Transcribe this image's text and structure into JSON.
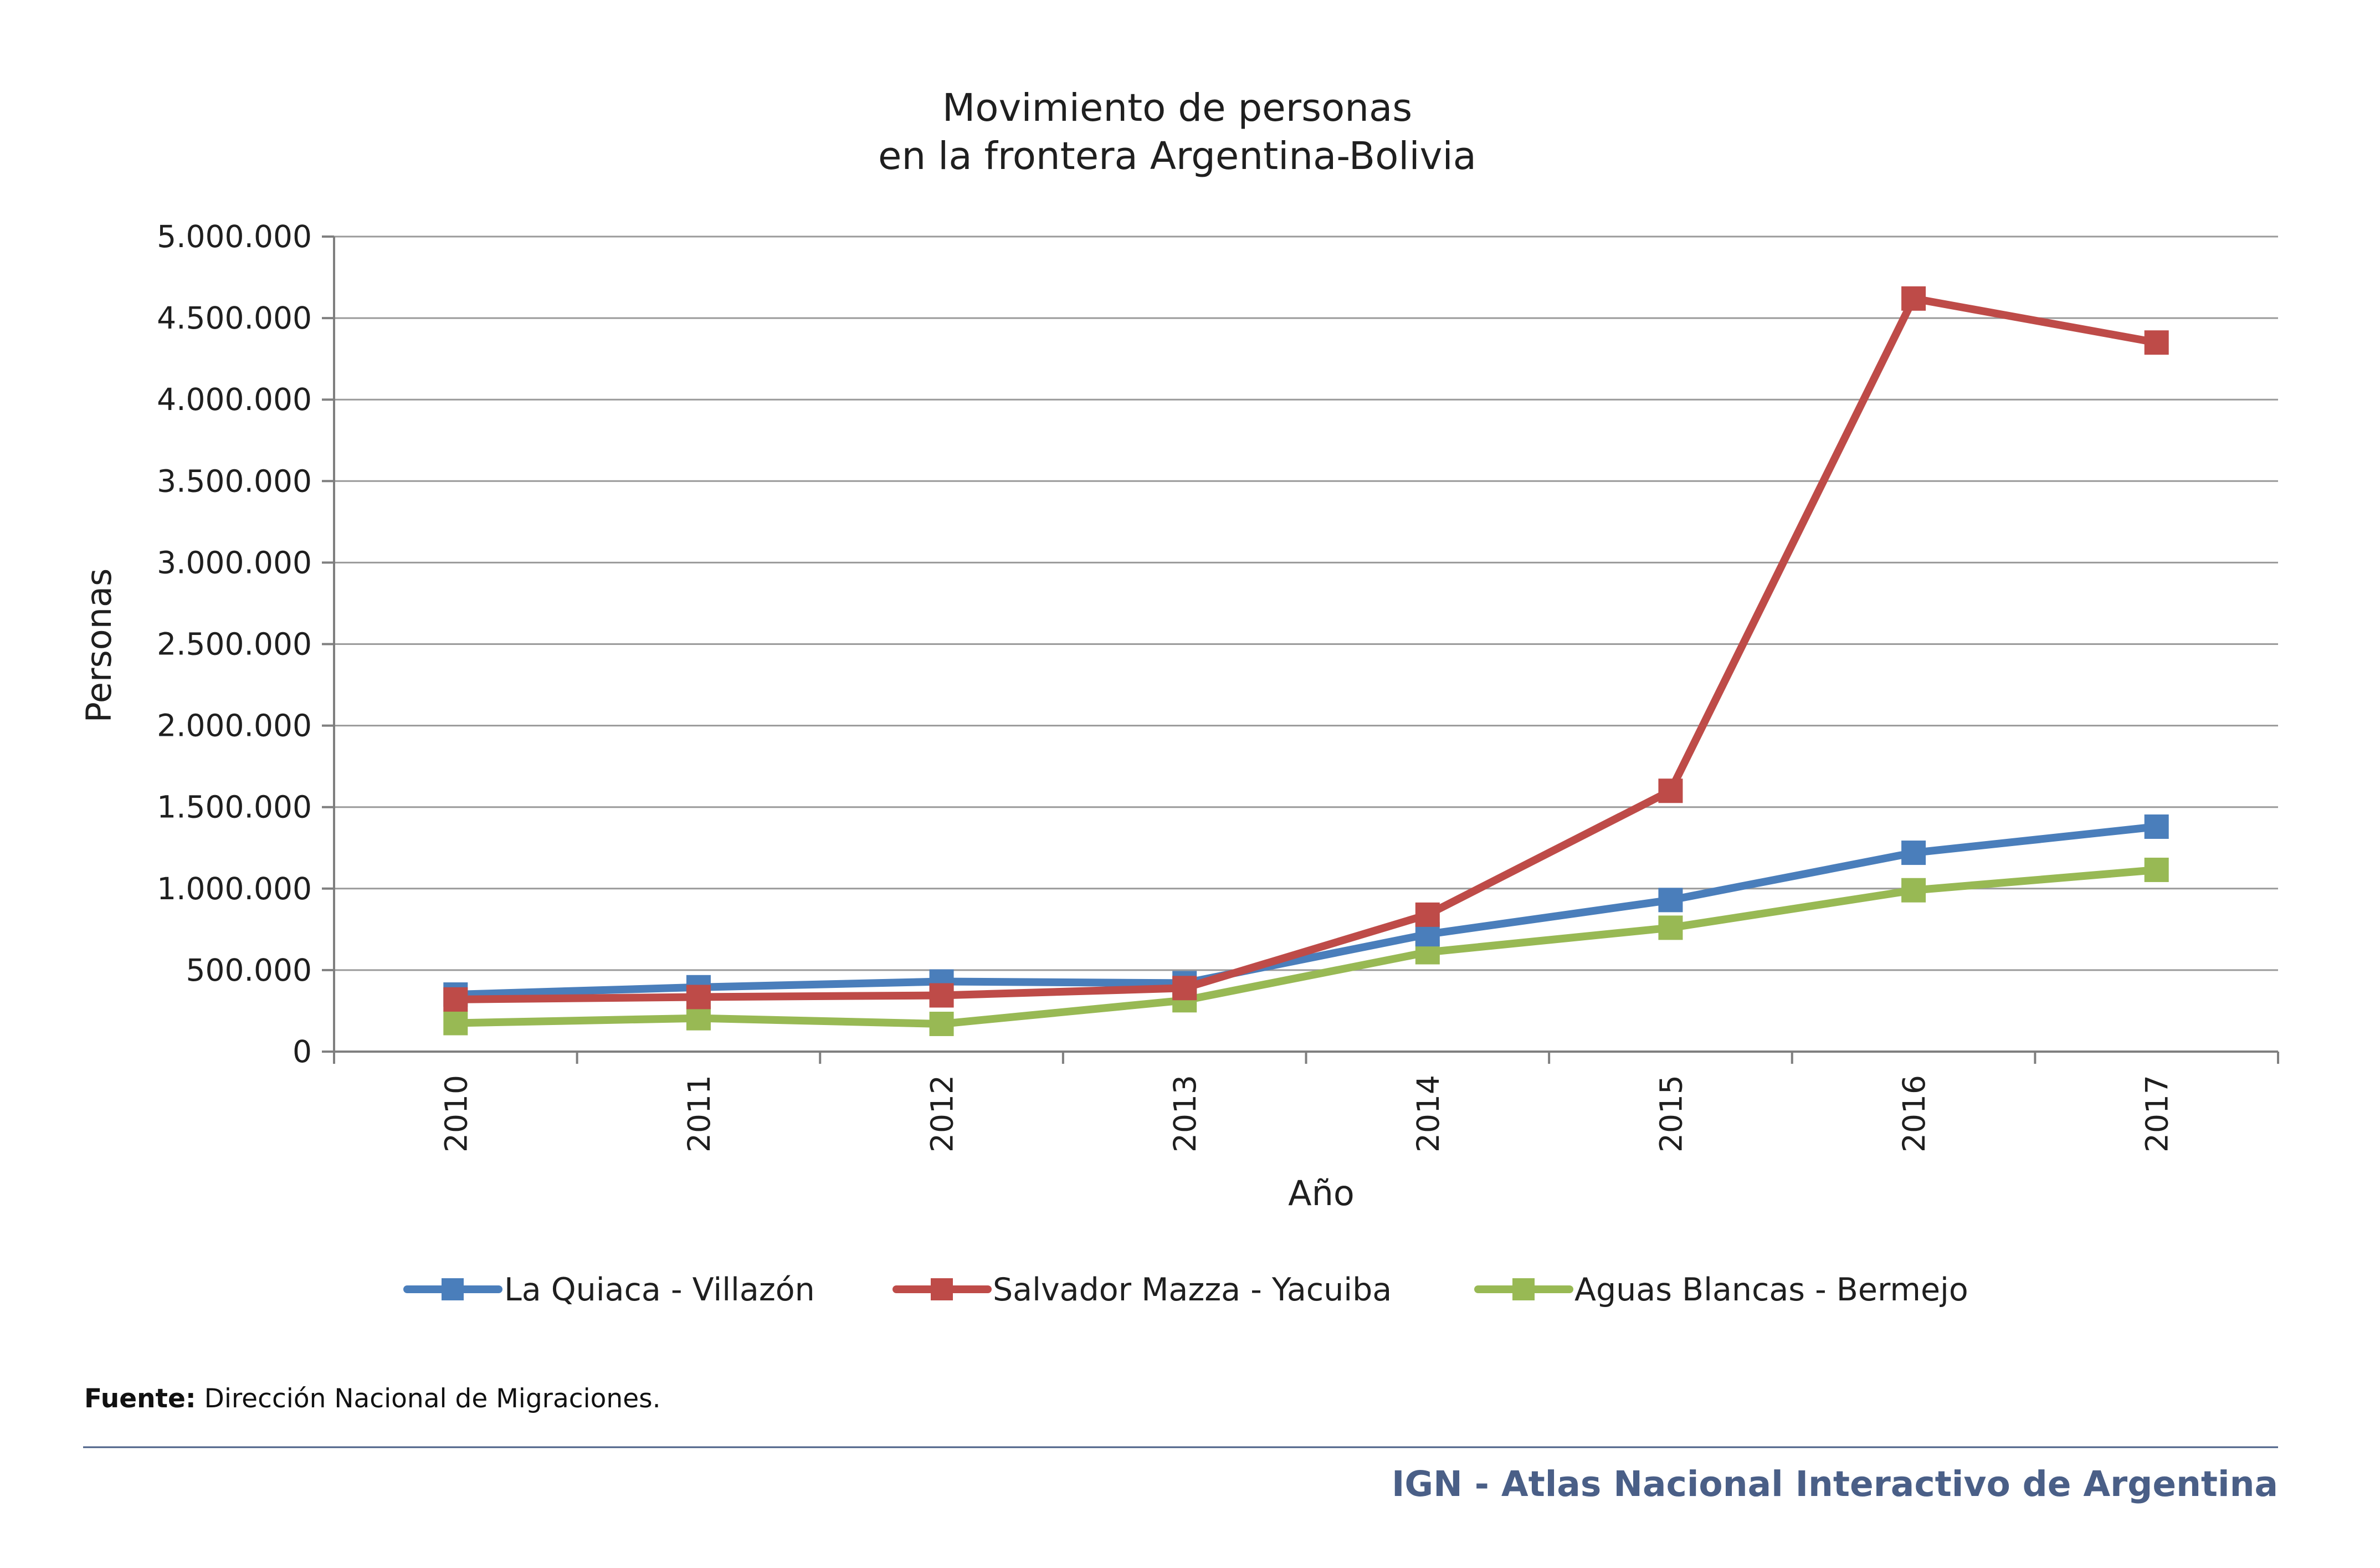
{
  "chart_data": {
    "type": "line",
    "title_lines": [
      "Movimiento de personas",
      "en la frontera Argentina-Bolivia"
    ],
    "xlabel": "Año",
    "ylabel": "Personas",
    "categories": [
      "2010",
      "2011",
      "2012",
      "2013",
      "2014",
      "2015",
      "2016",
      "2017"
    ],
    "ylim": [
      0,
      5000000
    ],
    "yticks": [
      0,
      500000,
      1000000,
      1500000,
      2000000,
      2500000,
      3000000,
      3500000,
      4000000,
      4500000,
      5000000
    ],
    "ytick_labels": [
      "0",
      "500.000",
      "1.000.000",
      "1.500.000",
      "2.000.000",
      "2.500.000",
      "3.000.000",
      "3.500.000",
      "4.000.000",
      "4.500.000",
      "5.000.000"
    ],
    "grid": true,
    "legend_position": "bottom",
    "series": [
      {
        "name": "La Quiaca - Villazón",
        "color": "#4a7ebb",
        "marker": "square",
        "values": [
          350000,
          395000,
          430000,
          420000,
          720000,
          930000,
          1220000,
          1380000
        ]
      },
      {
        "name": "Salvador Mazza - Yacuiba",
        "color": "#be4b48",
        "marker": "square",
        "values": [
          320000,
          335000,
          345000,
          390000,
          840000,
          1600000,
          4620000,
          4350000
        ]
      },
      {
        "name": "Aguas Blancas - Bermejo",
        "color": "#98b954",
        "marker": "square",
        "values": [
          175000,
          205000,
          170000,
          315000,
          610000,
          760000,
          990000,
          1115000
        ]
      }
    ]
  },
  "source": {
    "label": "Fuente:",
    "text": " Dirección Nacional de Migraciones."
  },
  "footer": {
    "brand": "IGN - Atlas Nacional Interactivo de Argentina",
    "rule_color": "#4a5f87"
  }
}
